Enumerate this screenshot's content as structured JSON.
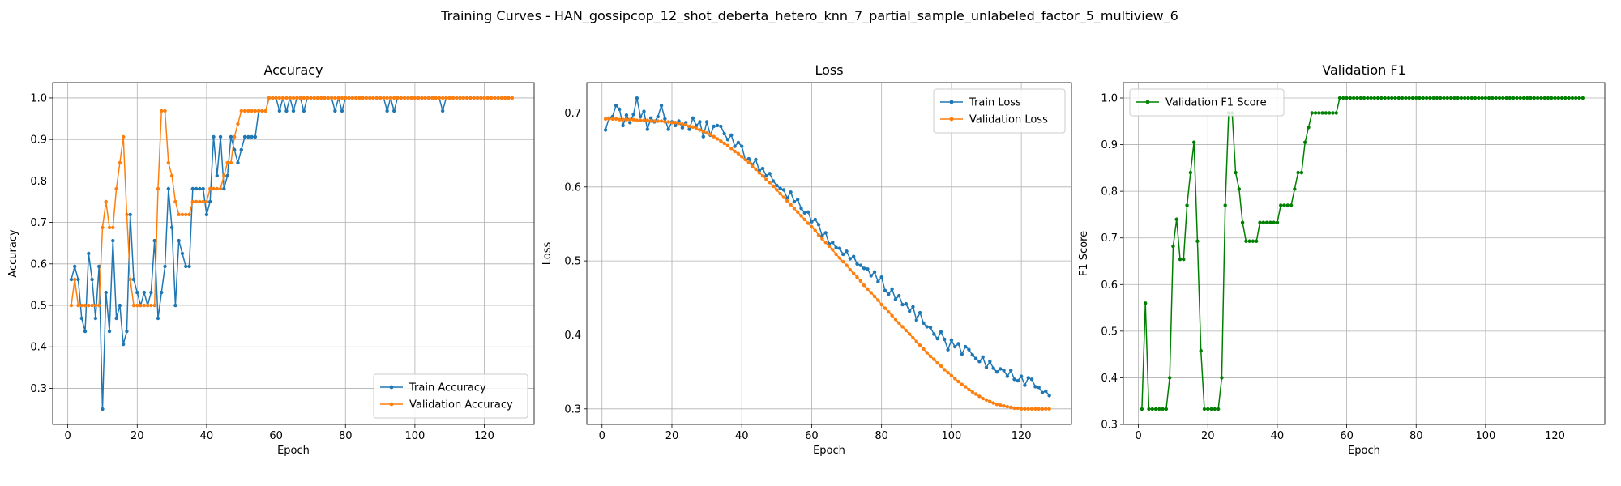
{
  "suptitle": "Training Curves - HAN_gossipcop_12_shot_deberta_hetero_knn_7_partial_sample_unlabeled_factor_5_multiview_6",
  "colors": {
    "train": "#1f77b4",
    "validation": "#ff7f0e",
    "f1": "#008000",
    "grid": "#b0b0b0"
  },
  "chart_data": [
    {
      "type": "line",
      "title": "Accuracy",
      "xlabel": "Epoch",
      "ylabel": "Accuracy",
      "xlim": [
        -4.35,
        134.35
      ],
      "ylim": [
        0.213,
        1.037
      ],
      "xticks": [
        0,
        20,
        40,
        60,
        80,
        100,
        120
      ],
      "yticks": [
        0.3,
        0.4,
        0.5,
        0.6,
        0.7,
        0.8,
        0.9,
        1.0
      ],
      "ytick_labels": [
        "0.3",
        "0.4",
        "0.5",
        "0.6",
        "0.7",
        "0.8",
        "0.9",
        "1.0"
      ],
      "grid": true,
      "legend": "lower-right",
      "x_start": 1,
      "series": [
        {
          "name": "Train Accuracy",
          "color": "#1f77b4",
          "values": [
            0.5625,
            0.5938,
            0.5625,
            0.4688,
            0.4375,
            0.625,
            0.5625,
            0.4688,
            0.5938,
            0.25,
            0.5312,
            0.4375,
            0.6562,
            0.4688,
            0.5,
            0.4062,
            0.4375,
            0.7188,
            0.5625,
            0.5312,
            0.5,
            0.5312,
            0.5,
            0.5312,
            0.6562,
            0.4688,
            0.5312,
            0.5938,
            0.7812,
            0.6875,
            0.5,
            0.6562,
            0.625,
            0.5938,
            0.5938,
            0.7812,
            0.7812,
            0.7812,
            0.7812,
            0.7188,
            0.75,
            0.9062,
            0.8125,
            0.9062,
            0.7812,
            0.8125,
            0.9062,
            0.875,
            0.8438,
            0.875,
            0.9062,
            0.9062,
            0.9062,
            0.9062,
            0.9688,
            0.9688,
            0.9688,
            1.0,
            1.0,
            1.0,
            0.9688,
            1.0,
            0.9688,
            1.0,
            0.9688,
            1.0,
            1.0,
            0.9688,
            1.0,
            1.0,
            1.0,
            1.0,
            1.0,
            1.0,
            1.0,
            1.0,
            0.9688,
            1.0,
            0.9688,
            1.0,
            1.0,
            1.0,
            1.0,
            1.0,
            1.0,
            1.0,
            1.0,
            1.0,
            1.0,
            1.0,
            1.0,
            0.9688,
            1.0,
            0.9688,
            1.0,
            1.0,
            1.0,
            1.0,
            1.0,
            1.0,
            1.0,
            1.0,
            1.0,
            1.0,
            1.0,
            1.0,
            1.0,
            0.9688,
            1.0,
            1.0,
            1.0,
            1.0,
            1.0,
            1.0,
            1.0,
            1.0,
            1.0,
            1.0,
            1.0,
            1.0,
            1.0,
            1.0,
            1.0,
            1.0,
            1.0,
            1.0,
            1.0,
            1.0
          ]
        },
        {
          "name": "Validation Accuracy",
          "color": "#ff7f0e",
          "values": [
            0.5,
            0.5625,
            0.5,
            0.5,
            0.5,
            0.5,
            0.5,
            0.5,
            0.5,
            0.6875,
            0.75,
            0.6875,
            0.6875,
            0.7812,
            0.8438,
            0.9062,
            0.7188,
            0.5625,
            0.5,
            0.5,
            0.5,
            0.5,
            0.5,
            0.5,
            0.5,
            0.7812,
            0.9688,
            0.9688,
            0.8438,
            0.8125,
            0.75,
            0.7188,
            0.7188,
            0.7188,
            0.7188,
            0.75,
            0.75,
            0.75,
            0.75,
            0.75,
            0.7812,
            0.7812,
            0.7812,
            0.7812,
            0.8125,
            0.8438,
            0.8438,
            0.9062,
            0.9375,
            0.9688,
            0.9688,
            0.9688,
            0.9688,
            0.9688,
            0.9688,
            0.9688,
            0.9688,
            1.0,
            1.0,
            1.0,
            1.0,
            1.0,
            1.0,
            1.0,
            1.0,
            1.0,
            1.0,
            1.0,
            1.0,
            1.0,
            1.0,
            1.0,
            1.0,
            1.0,
            1.0,
            1.0,
            1.0,
            1.0,
            1.0,
            1.0,
            1.0,
            1.0,
            1.0,
            1.0,
            1.0,
            1.0,
            1.0,
            1.0,
            1.0,
            1.0,
            1.0,
            1.0,
            1.0,
            1.0,
            1.0,
            1.0,
            1.0,
            1.0,
            1.0,
            1.0,
            1.0,
            1.0,
            1.0,
            1.0,
            1.0,
            1.0,
            1.0,
            1.0,
            1.0,
            1.0,
            1.0,
            1.0,
            1.0,
            1.0,
            1.0,
            1.0,
            1.0,
            1.0,
            1.0,
            1.0,
            1.0,
            1.0,
            1.0,
            1.0,
            1.0,
            1.0,
            1.0,
            1.0
          ]
        }
      ]
    },
    {
      "type": "line",
      "title": "Loss",
      "xlabel": "Epoch",
      "ylabel": "Loss",
      "xlim": [
        -4.35,
        134.35
      ],
      "ylim": [
        0.279,
        0.741
      ],
      "xticks": [
        0,
        20,
        40,
        60,
        80,
        100,
        120
      ],
      "yticks": [
        0.3,
        0.4,
        0.5,
        0.6,
        0.7
      ],
      "ytick_labels": [
        "0.3",
        "0.4",
        "0.5",
        "0.6",
        "0.7"
      ],
      "grid": true,
      "legend": "top-right",
      "x_start": 1,
      "series": [
        {
          "name": "Train Loss",
          "color": "#1f77b4",
          "values": [
            0.677,
            0.693,
            0.695,
            0.71,
            0.705,
            0.683,
            0.697,
            0.687,
            0.698,
            0.72,
            0.695,
            0.702,
            0.678,
            0.693,
            0.688,
            0.695,
            0.71,
            0.692,
            0.678,
            0.688,
            0.683,
            0.689,
            0.68,
            0.687,
            0.678,
            0.693,
            0.683,
            0.688,
            0.668,
            0.688,
            0.67,
            0.682,
            0.683,
            0.682,
            0.672,
            0.664,
            0.67,
            0.655,
            0.66,
            0.655,
            0.637,
            0.638,
            0.63,
            0.637,
            0.622,
            0.625,
            0.615,
            0.618,
            0.608,
            0.602,
            0.598,
            0.596,
            0.585,
            0.593,
            0.58,
            0.583,
            0.571,
            0.565,
            0.566,
            0.553,
            0.556,
            0.549,
            0.534,
            0.538,
            0.523,
            0.525,
            0.518,
            0.517,
            0.509,
            0.513,
            0.503,
            0.506,
            0.496,
            0.494,
            0.49,
            0.489,
            0.48,
            0.485,
            0.472,
            0.478,
            0.46,
            0.455,
            0.462,
            0.448,
            0.453,
            0.441,
            0.442,
            0.432,
            0.438,
            0.42,
            0.43,
            0.416,
            0.411,
            0.41,
            0.401,
            0.395,
            0.404,
            0.394,
            0.38,
            0.393,
            0.384,
            0.388,
            0.374,
            0.384,
            0.38,
            0.373,
            0.368,
            0.364,
            0.37,
            0.356,
            0.364,
            0.355,
            0.35,
            0.354,
            0.352,
            0.344,
            0.352,
            0.34,
            0.338,
            0.344,
            0.332,
            0.342,
            0.34,
            0.33,
            0.329,
            0.322,
            0.324,
            0.318
          ]
        },
        {
          "name": "Validation Loss",
          "color": "#ff7f0e",
          "values": [
            0.692,
            0.692,
            0.692,
            0.692,
            0.691,
            0.691,
            0.691,
            0.691,
            0.691,
            0.69,
            0.69,
            0.69,
            0.69,
            0.689,
            0.689,
            0.689,
            0.689,
            0.688,
            0.688,
            0.687,
            0.687,
            0.686,
            0.685,
            0.684,
            0.682,
            0.681,
            0.679,
            0.677,
            0.675,
            0.673,
            0.671,
            0.668,
            0.665,
            0.662,
            0.659,
            0.656,
            0.652,
            0.648,
            0.645,
            0.641,
            0.637,
            0.633,
            0.628,
            0.624,
            0.619,
            0.615,
            0.61,
            0.606,
            0.601,
            0.596,
            0.591,
            0.586,
            0.581,
            0.576,
            0.571,
            0.566,
            0.561,
            0.556,
            0.551,
            0.546,
            0.541,
            0.535,
            0.53,
            0.525,
            0.52,
            0.515,
            0.509,
            0.504,
            0.499,
            0.494,
            0.488,
            0.483,
            0.478,
            0.473,
            0.467,
            0.462,
            0.457,
            0.452,
            0.447,
            0.441,
            0.436,
            0.431,
            0.426,
            0.421,
            0.416,
            0.411,
            0.406,
            0.401,
            0.396,
            0.391,
            0.386,
            0.381,
            0.376,
            0.371,
            0.367,
            0.362,
            0.358,
            0.353,
            0.349,
            0.345,
            0.341,
            0.337,
            0.333,
            0.33,
            0.326,
            0.323,
            0.32,
            0.317,
            0.314,
            0.312,
            0.31,
            0.308,
            0.306,
            0.305,
            0.304,
            0.303,
            0.302,
            0.301,
            0.301,
            0.3,
            0.3,
            0.3,
            0.3,
            0.3,
            0.3,
            0.3,
            0.3,
            0.3
          ]
        }
      ]
    },
    {
      "type": "line",
      "title": "Validation F1",
      "xlabel": "Epoch",
      "ylabel": "F1 Score",
      "xlim": [
        -4.35,
        134.35
      ],
      "ylim": [
        0.3,
        1.033
      ],
      "xticks": [
        0,
        20,
        40,
        60,
        80,
        100,
        120
      ],
      "yticks": [
        0.3,
        0.4,
        0.5,
        0.6,
        0.7,
        0.8,
        0.9,
        1.0
      ],
      "ytick_labels": [
        "0.3",
        "0.4",
        "0.5",
        "0.6",
        "0.7",
        "0.8",
        "0.9",
        "1.0"
      ],
      "grid": true,
      "legend": "top-left",
      "x_start": 1,
      "series": [
        {
          "name": "Validation F1 Score",
          "color": "#008000",
          "values": [
            0.333,
            0.56,
            0.333,
            0.333,
            0.333,
            0.333,
            0.333,
            0.333,
            0.4,
            0.682,
            0.74,
            0.654,
            0.654,
            0.77,
            0.84,
            0.905,
            0.693,
            0.458,
            0.333,
            0.333,
            0.333,
            0.333,
            0.333,
            0.4,
            0.77,
            0.968,
            0.968,
            0.84,
            0.805,
            0.733,
            0.693,
            0.693,
            0.693,
            0.693,
            0.733,
            0.733,
            0.733,
            0.733,
            0.733,
            0.733,
            0.77,
            0.77,
            0.77,
            0.77,
            0.805,
            0.84,
            0.84,
            0.905,
            0.937,
            0.968,
            0.968,
            0.968,
            0.968,
            0.968,
            0.968,
            0.968,
            0.968,
            1.0,
            1.0,
            1.0,
            1.0,
            1.0,
            1.0,
            1.0,
            1.0,
            1.0,
            1.0,
            1.0,
            1.0,
            1.0,
            1.0,
            1.0,
            1.0,
            1.0,
            1.0,
            1.0,
            1.0,
            1.0,
            1.0,
            1.0,
            1.0,
            1.0,
            1.0,
            1.0,
            1.0,
            1.0,
            1.0,
            1.0,
            1.0,
            1.0,
            1.0,
            1.0,
            1.0,
            1.0,
            1.0,
            1.0,
            1.0,
            1.0,
            1.0,
            1.0,
            1.0,
            1.0,
            1.0,
            1.0,
            1.0,
            1.0,
            1.0,
            1.0,
            1.0,
            1.0,
            1.0,
            1.0,
            1.0,
            1.0,
            1.0,
            1.0,
            1.0,
            1.0,
            1.0,
            1.0,
            1.0,
            1.0,
            1.0,
            1.0,
            1.0,
            1.0,
            1.0,
            1.0
          ]
        }
      ]
    }
  ]
}
